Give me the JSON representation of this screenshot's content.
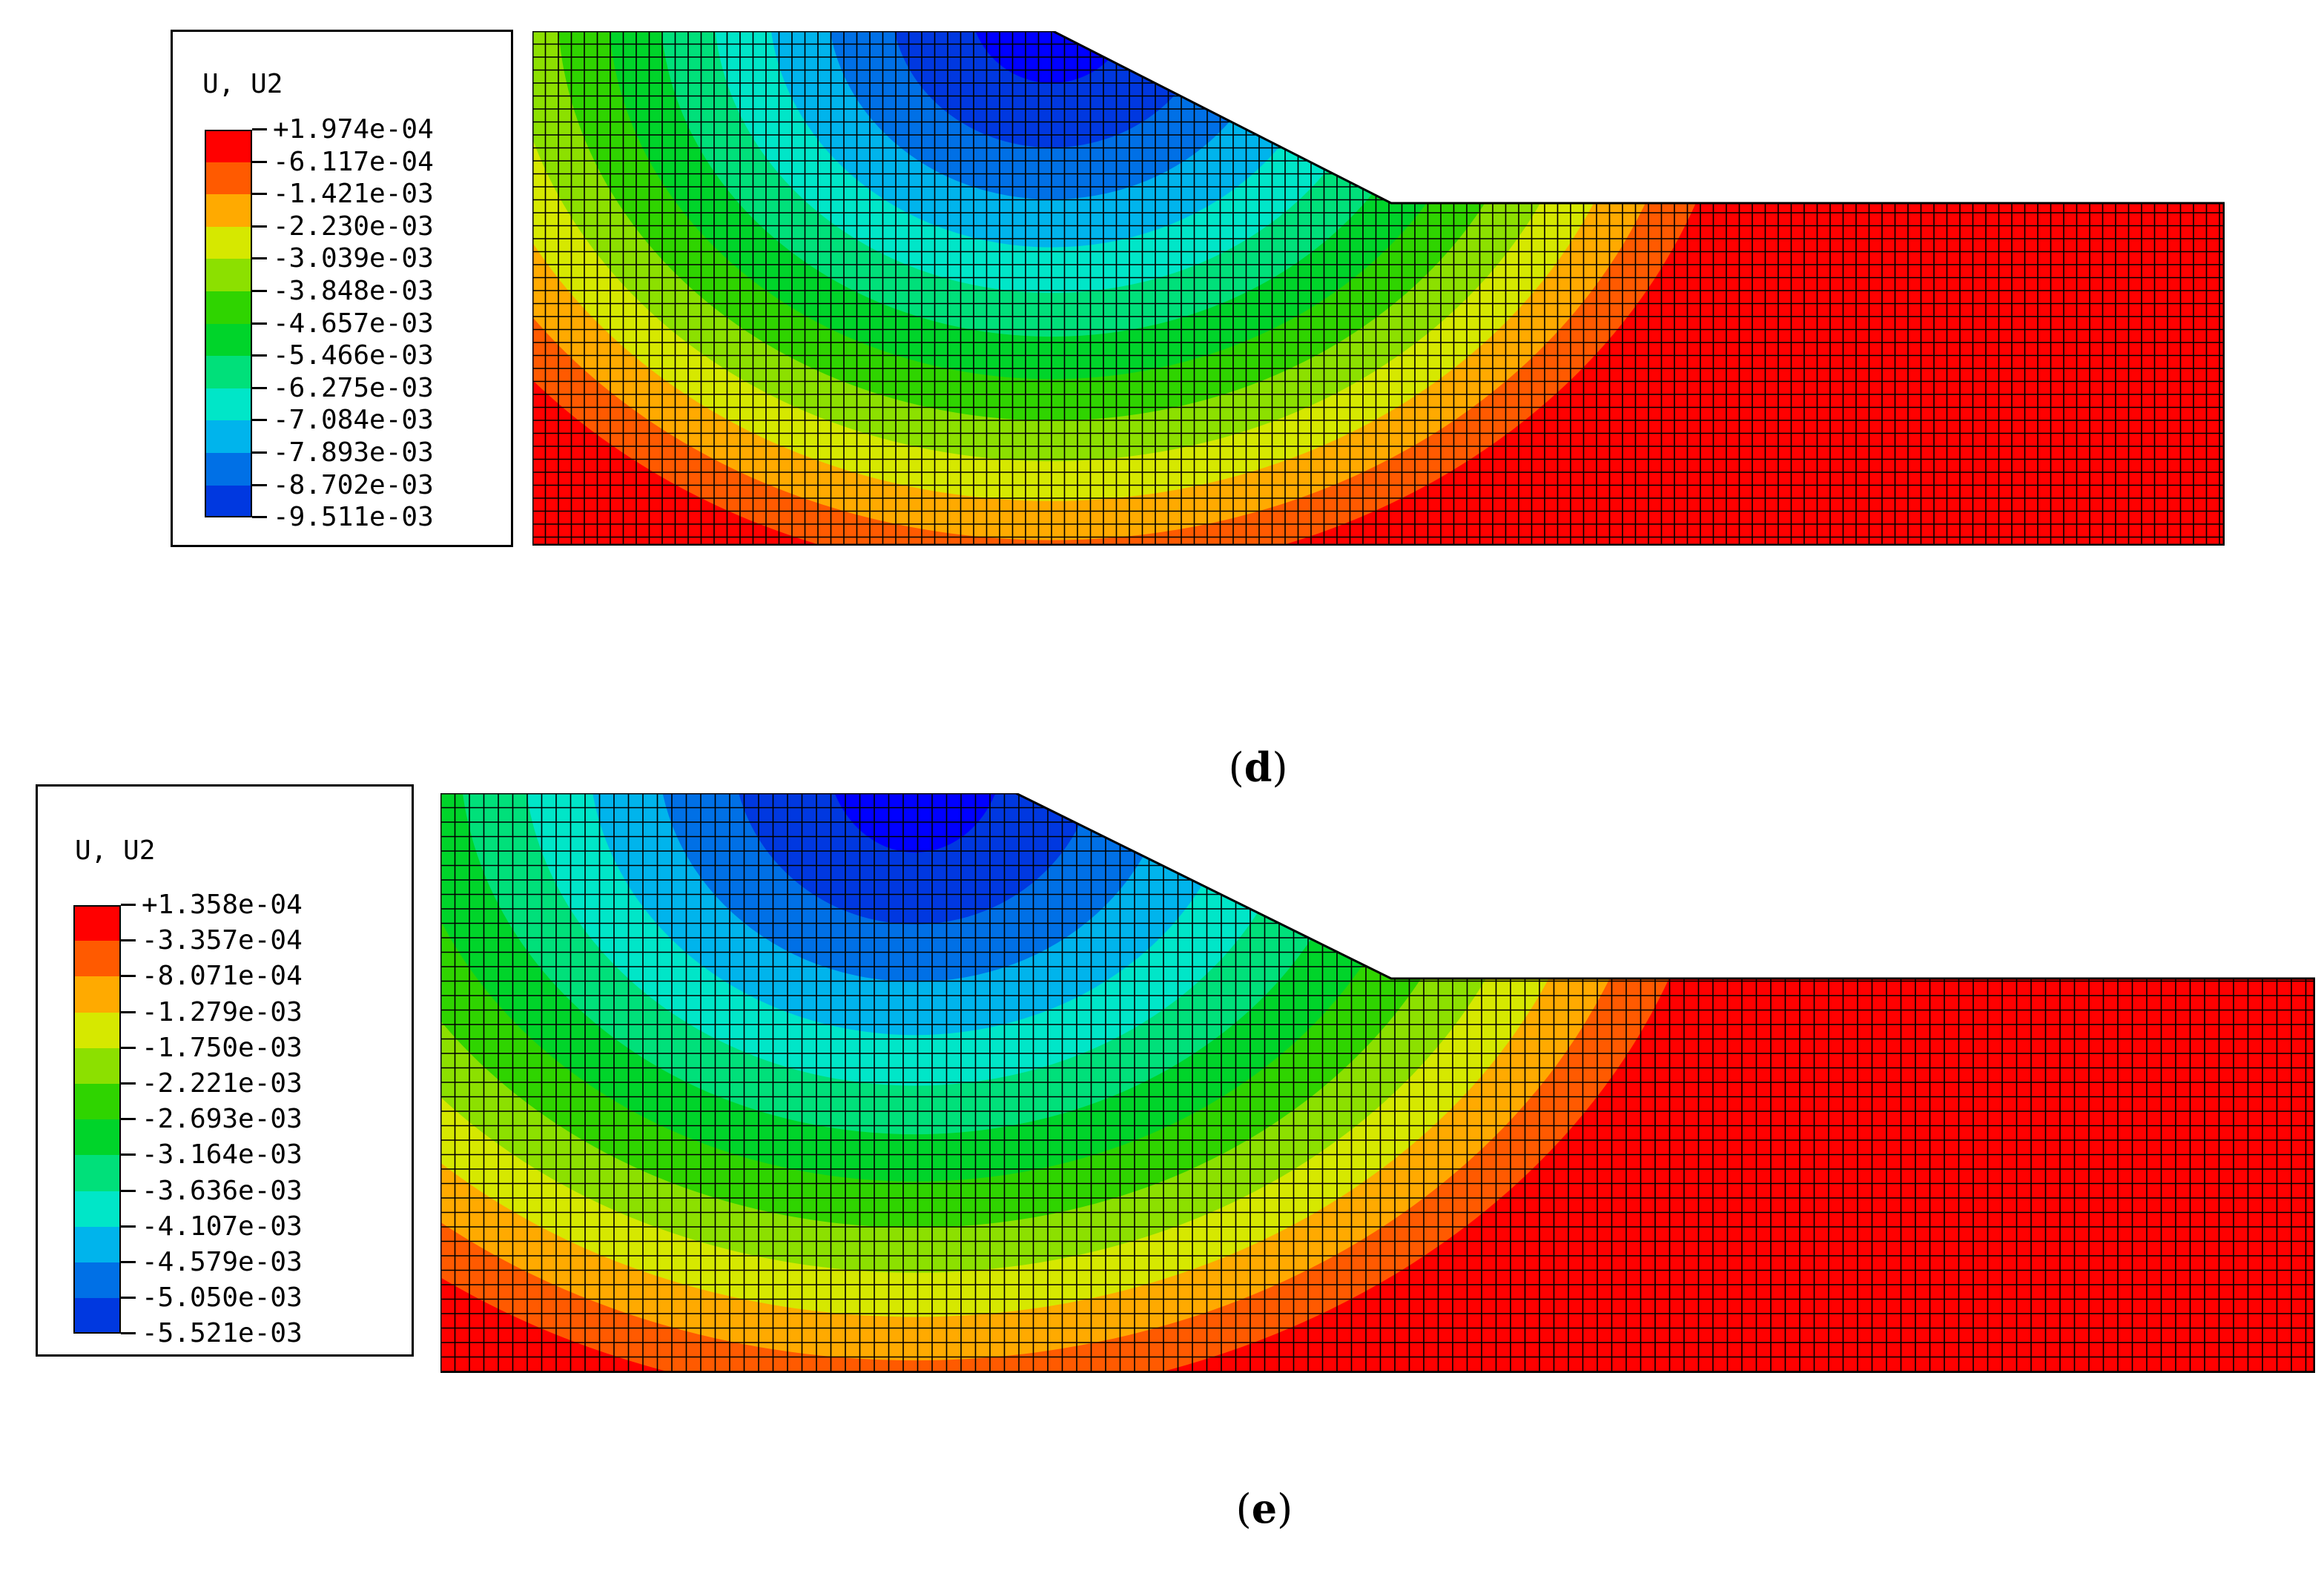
{
  "panels": [
    {
      "id": "d",
      "caption_open": "(",
      "caption_letter": "d",
      "caption_close": ")",
      "legend": {
        "title": "U, U2",
        "labels": [
          "+1.974e-04",
          "-6.117e-04",
          "-1.421e-03",
          "-2.230e-03",
          "-3.039e-03",
          "-3.848e-03",
          "-4.657e-03",
          "-5.466e-03",
          "-6.275e-03",
          "-7.084e-03",
          "-7.893e-03",
          "-8.702e-03",
          "-9.511e-03"
        ]
      }
    },
    {
      "id": "e",
      "caption_open": "(",
      "caption_letter": "e",
      "caption_close": ")",
      "legend": {
        "title": "U, U2",
        "labels": [
          "+1.358e-04",
          "-3.357e-04",
          "-8.071e-04",
          "-1.279e-03",
          "-1.750e-03",
          "-2.221e-03",
          "-2.693e-03",
          "-3.164e-03",
          "-3.636e-03",
          "-4.107e-03",
          "-4.579e-03",
          "-5.050e-03",
          "-5.521e-03"
        ]
      }
    }
  ],
  "colors": {
    "bands": [
      "#ff0000",
      "#ff5a00",
      "#ffaa00",
      "#d6e800",
      "#8ce000",
      "#2fd400",
      "#00d42a",
      "#00e07a",
      "#00e6c8",
      "#00b4ec",
      "#0070e6",
      "#0038e0",
      "#0000ff"
    ],
    "mesh": "#000000"
  }
}
